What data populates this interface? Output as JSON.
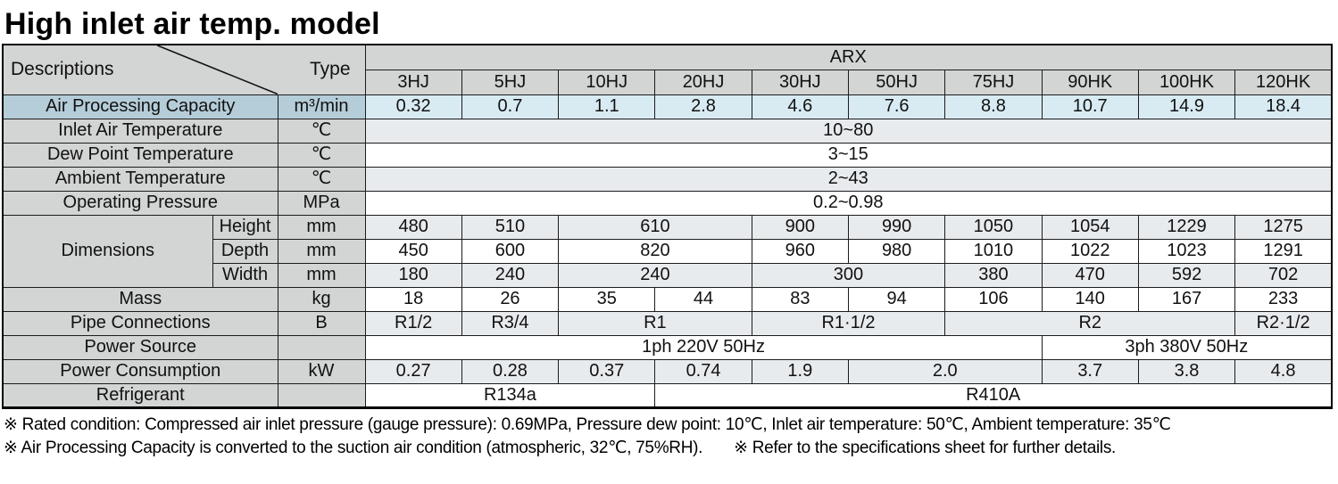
{
  "title": "High inlet air temp. model",
  "table": {
    "corner": {
      "descriptions": "Descriptions",
      "type": "Type"
    },
    "brand": "ARX",
    "models": [
      "3HJ",
      "5HJ",
      "10HJ",
      "20HJ",
      "30HJ",
      "50HJ",
      "75HJ",
      "90HK",
      "100HK",
      "120HK"
    ],
    "rows": [
      {
        "id": "air-processing-capacity",
        "label": "Air Processing Capacity",
        "unit": "m³/min",
        "variant": "capacity",
        "shade": false,
        "cells": [
          [
            "0.32",
            1
          ],
          [
            "0.7",
            1
          ],
          [
            "1.1",
            1
          ],
          [
            "2.8",
            1
          ],
          [
            "4.6",
            1
          ],
          [
            "7.6",
            1
          ],
          [
            "8.8",
            1
          ],
          [
            "10.7",
            1
          ],
          [
            "14.9",
            1
          ],
          [
            "18.4",
            1
          ]
        ]
      },
      {
        "id": "inlet-air-temperature",
        "label": "Inlet Air Temperature",
        "unit": "℃",
        "shade": true,
        "cells": [
          [
            "10~80",
            10
          ]
        ]
      },
      {
        "id": "dew-point-temperature",
        "label": "Dew Point Temperature",
        "unit": "℃",
        "shade": false,
        "cells": [
          [
            "3~15",
            10
          ]
        ]
      },
      {
        "id": "ambient-temperature",
        "label": "Ambient Temperature",
        "unit": "℃",
        "shade": true,
        "cells": [
          [
            "2~43",
            10
          ]
        ]
      },
      {
        "id": "operating-pressure",
        "label": "Operating Pressure",
        "unit": "MPa",
        "shade": false,
        "cells": [
          [
            "0.2~0.98",
            10
          ]
        ]
      },
      {
        "id": "dimensions-height",
        "label": "Dimensions",
        "label_rowspan": 3,
        "sublabel": "Height",
        "unit": "mm",
        "shade": true,
        "cells": [
          [
            "480",
            1
          ],
          [
            "510",
            1
          ],
          [
            "610",
            2
          ],
          [
            "900",
            1
          ],
          [
            "990",
            1
          ],
          [
            "1050",
            1
          ],
          [
            "1054",
            1
          ],
          [
            "1229",
            1
          ],
          [
            "1275",
            1
          ]
        ]
      },
      {
        "id": "dimensions-depth",
        "sublabel": "Depth",
        "unit": "mm",
        "shade": false,
        "cells": [
          [
            "450",
            1
          ],
          [
            "600",
            1
          ],
          [
            "820",
            2
          ],
          [
            "960",
            1
          ],
          [
            "980",
            1
          ],
          [
            "1010",
            1
          ],
          [
            "1022",
            1
          ],
          [
            "1023",
            1
          ],
          [
            "1291",
            1
          ]
        ]
      },
      {
        "id": "dimensions-width",
        "sublabel": "Width",
        "unit": "mm",
        "shade": true,
        "cells": [
          [
            "180",
            1
          ],
          [
            "240",
            1
          ],
          [
            "240",
            2
          ],
          [
            "300",
            2
          ],
          [
            "380",
            1
          ],
          [
            "470",
            1
          ],
          [
            "592",
            1
          ],
          [
            "702",
            1
          ]
        ]
      },
      {
        "id": "mass",
        "label": "Mass",
        "unit": "kg",
        "shade": false,
        "cells": [
          [
            "18",
            1
          ],
          [
            "26",
            1
          ],
          [
            "35",
            1
          ],
          [
            "44",
            1
          ],
          [
            "83",
            1
          ],
          [
            "94",
            1
          ],
          [
            "106",
            1
          ],
          [
            "140",
            1
          ],
          [
            "167",
            1
          ],
          [
            "233",
            1
          ]
        ]
      },
      {
        "id": "pipe-connections",
        "label": "Pipe Connections",
        "unit": "B",
        "shade": true,
        "cells": [
          [
            "R1/2",
            1
          ],
          [
            "R3/4",
            1
          ],
          [
            "R1",
            2
          ],
          [
            "R1·1/2",
            2
          ],
          [
            "R2",
            3
          ],
          [
            "R2·1/2",
            1
          ]
        ]
      },
      {
        "id": "power-source",
        "label": "Power Source",
        "unit": "",
        "shade": false,
        "cells": [
          [
            "1ph 220V 50Hz",
            7
          ],
          [
            "3ph 380V 50Hz",
            3
          ]
        ]
      },
      {
        "id": "power-consumption",
        "label": "Power Consumption",
        "unit": "kW",
        "shade": true,
        "cells": [
          [
            "0.27",
            1
          ],
          [
            "0.28",
            1
          ],
          [
            "0.37",
            1
          ],
          [
            "0.74",
            1
          ],
          [
            "1.9",
            1
          ],
          [
            "2.0",
            2
          ],
          [
            "3.7",
            1
          ],
          [
            "3.8",
            1
          ],
          [
            "4.8",
            1
          ]
        ]
      },
      {
        "id": "refrigerant",
        "label": "Refrigerant",
        "unit": "",
        "shade": false,
        "cells": [
          [
            "R134a",
            3
          ],
          [
            "R410A",
            7
          ]
        ]
      }
    ]
  },
  "footnotes": {
    "line1": "※ Rated condition: Compressed air inlet pressure (gauge pressure): 0.69MPa, Pressure dew point: 10℃,  Inlet air temperature: 50℃, Ambient temperature: 35℃",
    "line2a": "※ Air Processing Capacity is converted to the suction air condition (atmospheric, 32℃, 75%RH).",
    "line2b": "※ Refer to the specifications sheet for further details."
  },
  "colors": {
    "header_gray": "#d3d4d4",
    "capacity_label_blue": "#b5cdd9",
    "capacity_value_blue": "#d8ebf2",
    "shade_row": "#e8ebee",
    "border_black": "#000000"
  }
}
